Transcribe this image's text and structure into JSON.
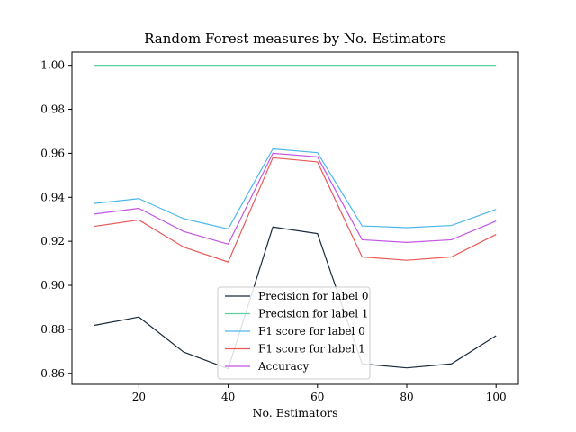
{
  "chart_data": {
    "type": "line",
    "title": "Random Forest measures by No. Estimators",
    "xlabel": "No. Estimators",
    "ylabel": "",
    "x": [
      10,
      20,
      30,
      40,
      50,
      60,
      70,
      80,
      90,
      100
    ],
    "xlim": [
      5,
      105
    ],
    "ylim": [
      0.855,
      1.006
    ],
    "xticks": [
      20,
      40,
      60,
      80,
      100
    ],
    "yticks": [
      0.86,
      0.88,
      0.9,
      0.92,
      0.94,
      0.96,
      0.98,
      1.0
    ],
    "ytick_labels": [
      "0.86",
      "0.88",
      "0.90",
      "0.92",
      "0.94",
      "0.96",
      "0.98",
      "1.00"
    ],
    "grid": false,
    "legend_position": "bottom-center",
    "series": [
      {
        "name": "Precision for label 0",
        "color": "#1a2b3c",
        "values": [
          0.8818,
          0.8856,
          0.8697,
          0.8621,
          0.9265,
          0.9235,
          0.8643,
          0.8625,
          0.8643,
          0.8771
        ]
      },
      {
        "name": "Precision for label 1",
        "color": "#5fcf9f",
        "values": [
          1.0,
          1.0,
          1.0,
          1.0,
          1.0,
          1.0,
          1.0,
          1.0,
          1.0,
          1.0
        ]
      },
      {
        "name": "F1 score for label 0",
        "color": "#4cb8ea",
        "values": [
          0.9372,
          0.9394,
          0.9303,
          0.9256,
          0.962,
          0.9603,
          0.927,
          0.9262,
          0.9272,
          0.9345
        ]
      },
      {
        "name": "F1 score for label 1",
        "color": "#e85a5a",
        "values": [
          0.9268,
          0.9297,
          0.9174,
          0.9106,
          0.958,
          0.9561,
          0.9129,
          0.9114,
          0.9129,
          0.9231
        ]
      },
      {
        "name": "Accuracy",
        "color": "#c355e5",
        "values": [
          0.9324,
          0.935,
          0.9245,
          0.9187,
          0.96,
          0.9584,
          0.9207,
          0.9195,
          0.9207,
          0.9292
        ]
      }
    ]
  }
}
